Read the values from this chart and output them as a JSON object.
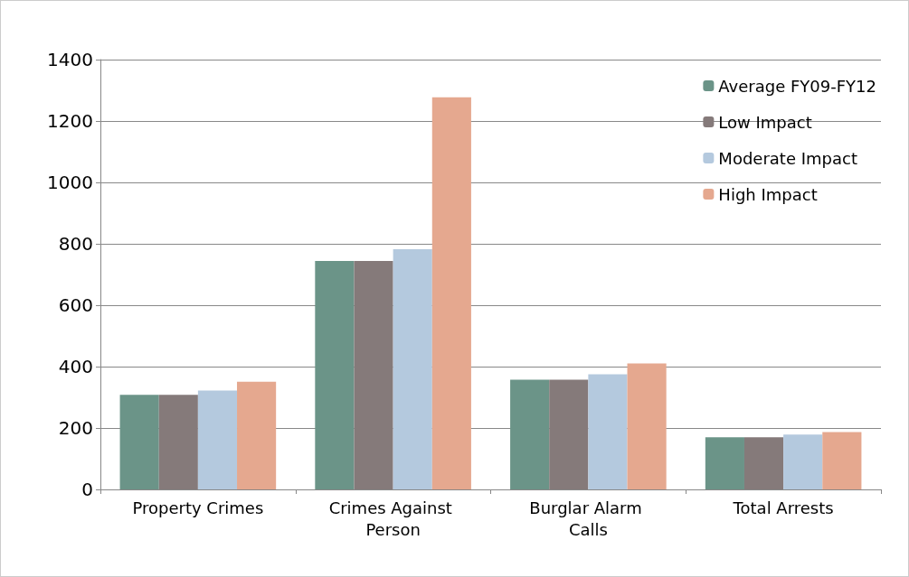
{
  "chart_data": {
    "type": "bar",
    "categories": [
      "Property Crimes",
      "Crimes Against Person",
      "Burglar Alarm Calls",
      "Total Arrests"
    ],
    "series": [
      {
        "name": "Average FY09-FY12",
        "color": "#6b9488",
        "values": [
          308,
          744,
          357,
          170
        ]
      },
      {
        "name": "Low Impact",
        "color": "#857a7a",
        "values": [
          308,
          744,
          357,
          170
        ]
      },
      {
        "name": "Moderate Impact",
        "color": "#b4c9de",
        "values": [
          322,
          782,
          375,
          179
        ]
      },
      {
        "name": "High Impact",
        "color": "#e5a88f",
        "values": [
          351,
          1277,
          410,
          187
        ]
      }
    ],
    "ylim": [
      0,
      1400
    ],
    "yticks": [
      0,
      200,
      400,
      600,
      800,
      1000,
      1200,
      1400
    ],
    "grid": "y",
    "legend": "top right"
  }
}
